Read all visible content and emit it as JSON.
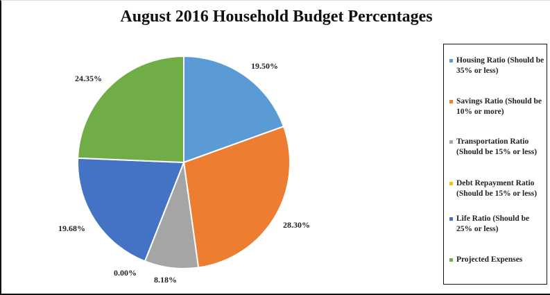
{
  "chart_data": {
    "type": "pie",
    "title": "August 2016 Household Budget Percentages",
    "categories": [
      "Housing Ratio (Should be 35% or less)",
      "Savings Ratio (Should be 10% or more)",
      "Transportation Ratio (Should be 15% or less)",
      "Debt Repayment Ratio (Should be 15% or less)",
      "Life Ratio (Should be 25% or less)",
      "Projected Expenses"
    ],
    "values": [
      19.5,
      28.3,
      8.18,
      0.0,
      19.68,
      24.35
    ],
    "labels": [
      "19.50%",
      "28.30%",
      "8.18%",
      "0.00%",
      "19.68%",
      "24.35%"
    ],
    "colors": [
      "#5B9BD5",
      "#ED7D31",
      "#A5A5A5",
      "#FFC000",
      "#4472C4",
      "#70AD47"
    ],
    "legend_position": "right",
    "start_angle_deg": 0,
    "direction": "clockwise"
  },
  "title": "August 2016 Household Budget Percentages",
  "legend": {
    "items": [
      {
        "label": "Housing Ratio (Should be 35% or less)",
        "color": "#5B9BD5"
      },
      {
        "label": "Savings Ratio (Should be 10% or more)",
        "color": "#ED7D31"
      },
      {
        "label": "Transportation Ratio (Should be 15% or less)",
        "color": "#A5A5A5"
      },
      {
        "label": "Debt Repayment Ratio (Should be 15% or less)",
        "color": "#FFC000"
      },
      {
        "label": "Life Ratio (Should be 25% or less)",
        "color": "#4472C4"
      },
      {
        "label": "Projected Expenses",
        "color": "#70AD47"
      }
    ]
  },
  "data_labels": [
    {
      "text": "19.50%"
    },
    {
      "text": "28.30%"
    },
    {
      "text": "8.18%"
    },
    {
      "text": "0.00%"
    },
    {
      "text": "19.68%"
    },
    {
      "text": "24.35%"
    }
  ]
}
